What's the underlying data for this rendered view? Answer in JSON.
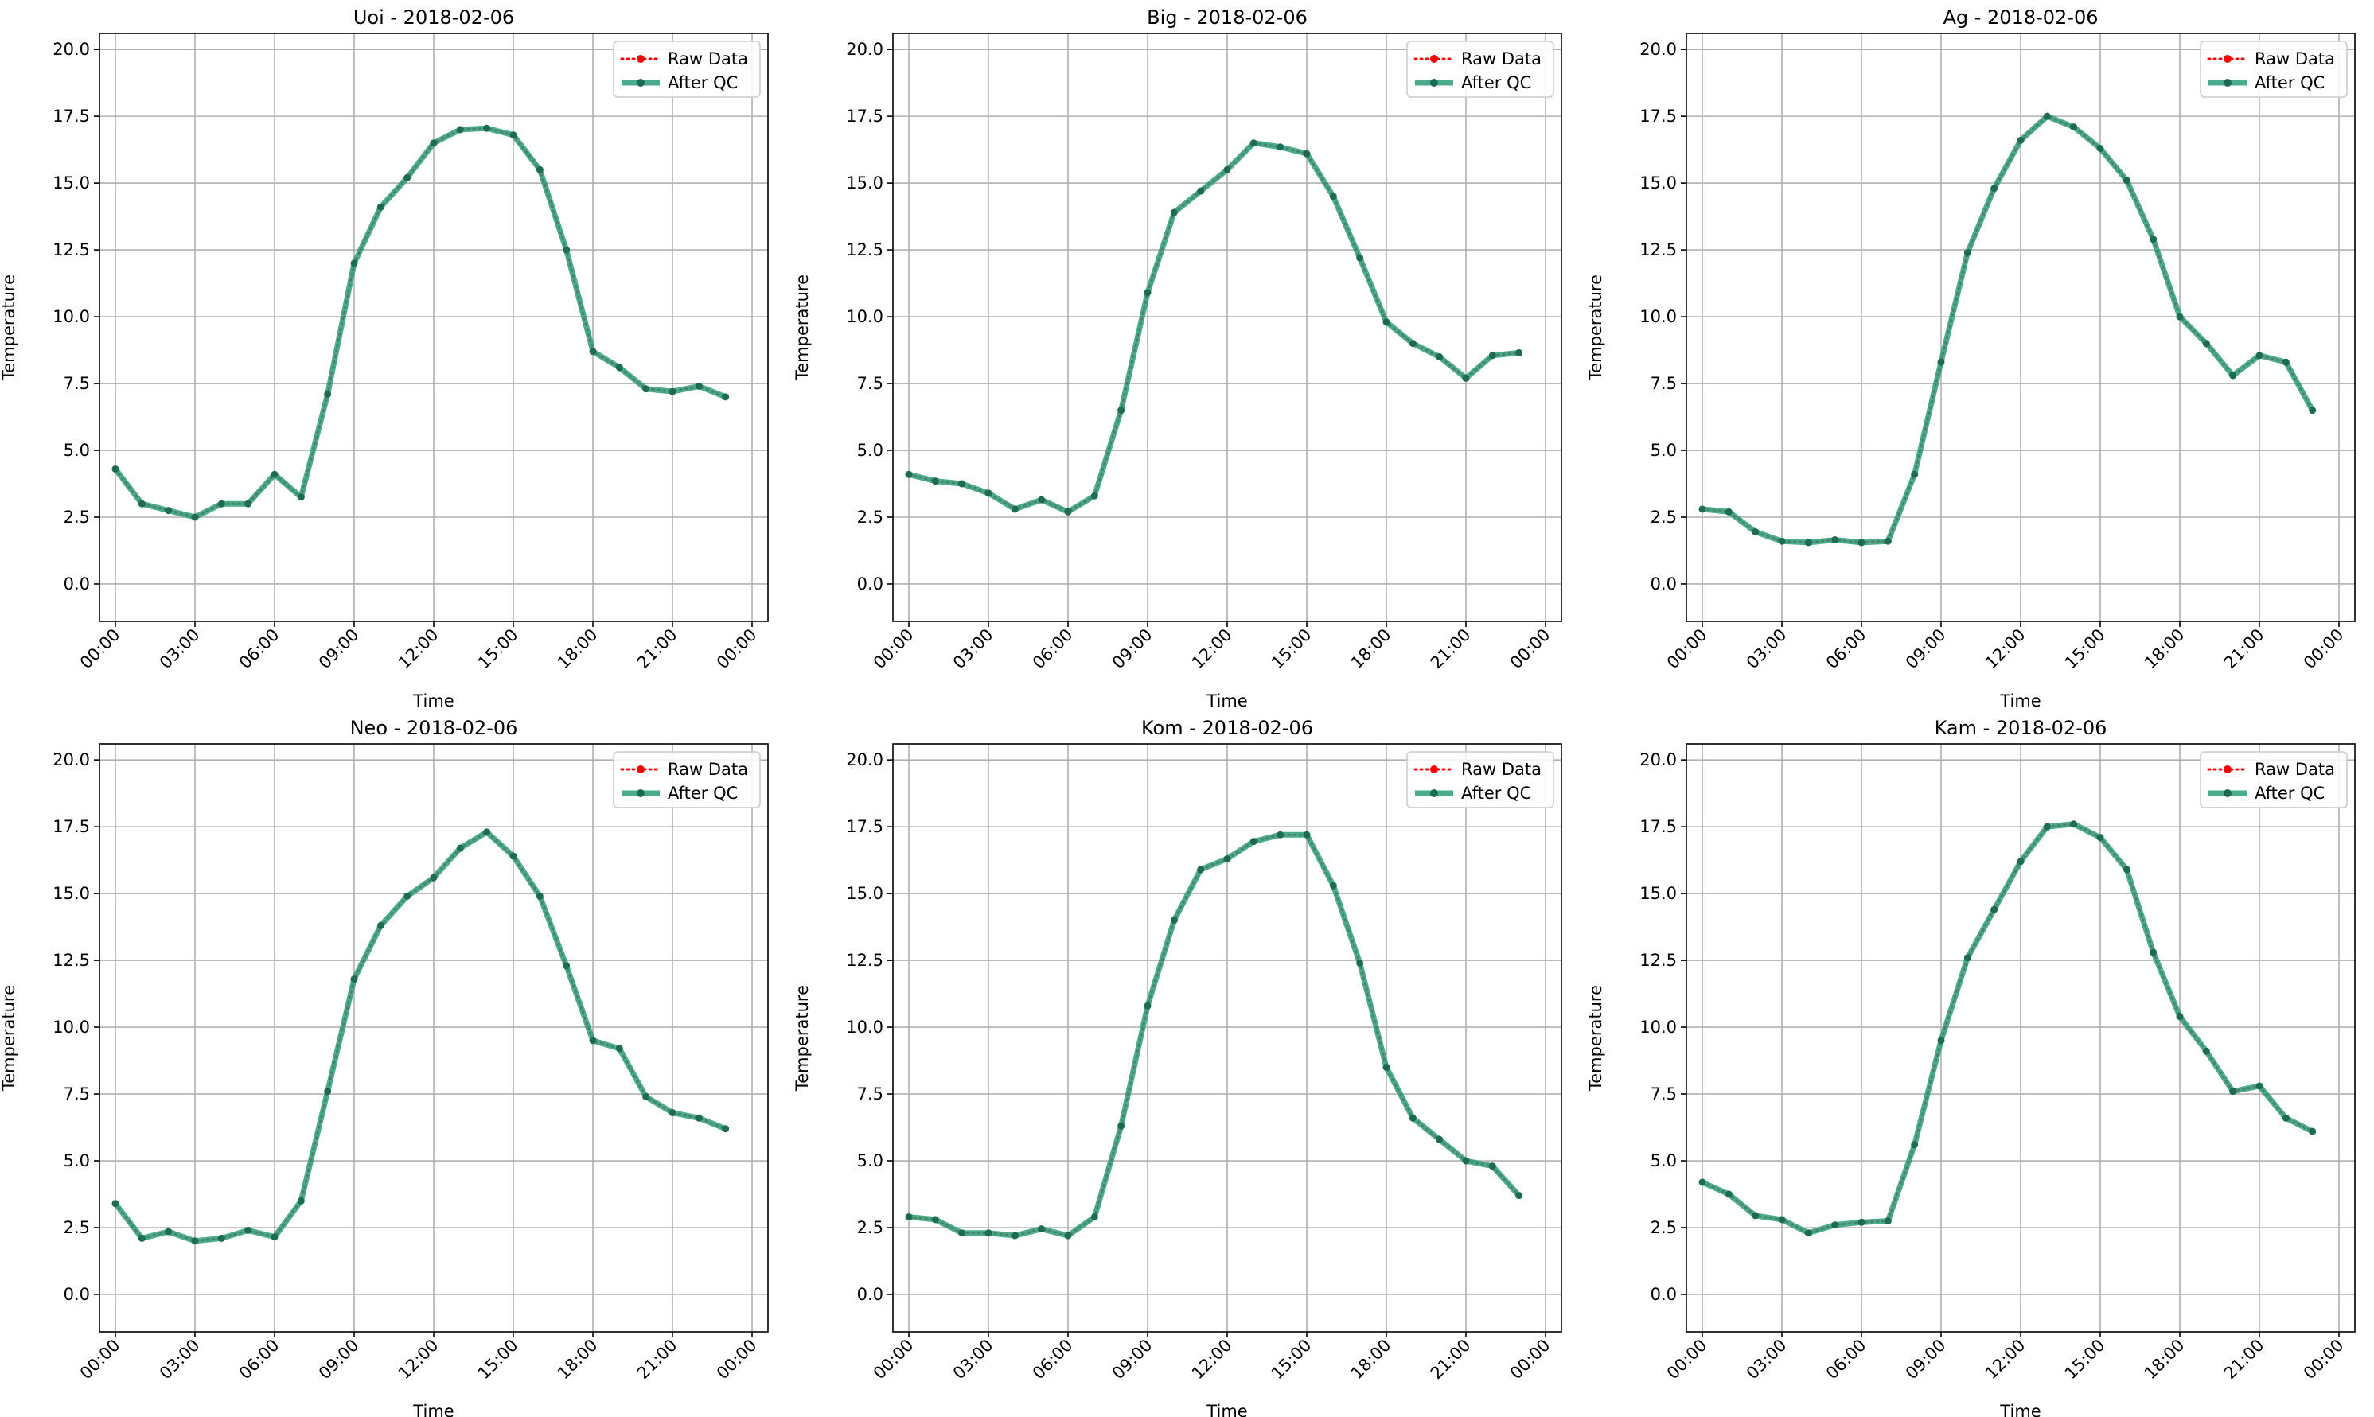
{
  "colors": {
    "raw": "#ff0000",
    "qc": "#2a9d78",
    "marker_dark": "#1e6b55",
    "grid": "#b0b0b0",
    "axis": "#000000"
  },
  "legend": {
    "raw_label": "Raw Data",
    "qc_label": "After QC"
  },
  "chart_data": [
    {
      "type": "line",
      "title": "Uoi - 2018-02-06",
      "xlabel": "Time",
      "ylabel": "Temperature",
      "xlim": [
        -0.6,
        24.6
      ],
      "ylim": [
        -1.4,
        20.6
      ],
      "legend_position": "top-right",
      "grid": true,
      "x_ticks": [
        0,
        3,
        6,
        9,
        12,
        15,
        18,
        21,
        24
      ],
      "x_tick_labels": [
        "00:00",
        "03:00",
        "06:00",
        "09:00",
        "12:00",
        "15:00",
        "18:00",
        "21:00",
        "00:00"
      ],
      "y_ticks": [
        0,
        2.5,
        5,
        7.5,
        10,
        12.5,
        15,
        17.5,
        20
      ],
      "y_tick_labels": [
        "0.0",
        "2.5",
        "5.0",
        "7.5",
        "10.0",
        "12.5",
        "15.0",
        "17.5",
        "20.0"
      ],
      "x": [
        0,
        1,
        2,
        3,
        4,
        5,
        6,
        7,
        8,
        9,
        10,
        11,
        12,
        13,
        14,
        15,
        16,
        17,
        18,
        19,
        20,
        21,
        22,
        23
      ],
      "series": [
        {
          "name": "Raw Data",
          "values": [
            4.3,
            3.0,
            2.75,
            2.5,
            3.0,
            3.0,
            4.1,
            3.25,
            7.1,
            12.0,
            14.1,
            15.2,
            16.5,
            17.0,
            17.05,
            16.8,
            15.5,
            12.5,
            8.7,
            8.1,
            7.3,
            7.2,
            7.4,
            7.0
          ]
        },
        {
          "name": "After QC",
          "values": [
            4.3,
            3.0,
            2.75,
            2.5,
            3.0,
            3.0,
            4.1,
            3.25,
            7.1,
            12.0,
            14.1,
            15.2,
            16.5,
            17.0,
            17.05,
            16.8,
            15.5,
            12.5,
            8.7,
            8.1,
            7.3,
            7.2,
            7.4,
            7.0
          ]
        }
      ]
    },
    {
      "type": "line",
      "title": "Big - 2018-02-06",
      "xlabel": "Time",
      "ylabel": "Temperature",
      "xlim": [
        -0.6,
        24.6
      ],
      "ylim": [
        -1.4,
        20.6
      ],
      "legend_position": "top-right",
      "grid": true,
      "x_ticks": [
        0,
        3,
        6,
        9,
        12,
        15,
        18,
        21,
        24
      ],
      "x_tick_labels": [
        "00:00",
        "03:00",
        "06:00",
        "09:00",
        "12:00",
        "15:00",
        "18:00",
        "21:00",
        "00:00"
      ],
      "y_ticks": [
        0,
        2.5,
        5,
        7.5,
        10,
        12.5,
        15,
        17.5,
        20
      ],
      "y_tick_labels": [
        "0.0",
        "2.5",
        "5.0",
        "7.5",
        "10.0",
        "12.5",
        "15.0",
        "17.5",
        "20.0"
      ],
      "x": [
        0,
        1,
        2,
        3,
        4,
        5,
        6,
        7,
        8,
        9,
        10,
        11,
        12,
        13,
        14,
        15,
        16,
        17,
        18,
        19,
        20,
        21,
        22,
        23
      ],
      "series": [
        {
          "name": "Raw Data",
          "values": [
            4.1,
            3.85,
            3.75,
            3.4,
            2.8,
            3.15,
            2.7,
            3.3,
            6.5,
            10.9,
            13.9,
            14.7,
            15.5,
            16.5,
            16.35,
            16.1,
            14.5,
            12.2,
            9.8,
            9.0,
            8.5,
            7.7,
            8.55,
            8.65
          ]
        },
        {
          "name": "After QC",
          "values": [
            4.1,
            3.85,
            3.75,
            3.4,
            2.8,
            3.15,
            2.7,
            3.3,
            6.5,
            10.9,
            13.9,
            14.7,
            15.5,
            16.5,
            16.35,
            16.1,
            14.5,
            12.2,
            9.8,
            9.0,
            8.5,
            7.7,
            8.55,
            8.65
          ]
        }
      ]
    },
    {
      "type": "line",
      "title": "Ag - 2018-02-06",
      "xlabel": "Time",
      "ylabel": "Temperature",
      "xlim": [
        -0.6,
        24.6
      ],
      "ylim": [
        -1.4,
        20.6
      ],
      "legend_position": "top-right",
      "grid": true,
      "x_ticks": [
        0,
        3,
        6,
        9,
        12,
        15,
        18,
        21,
        24
      ],
      "x_tick_labels": [
        "00:00",
        "03:00",
        "06:00",
        "09:00",
        "12:00",
        "15:00",
        "18:00",
        "21:00",
        "00:00"
      ],
      "y_ticks": [
        0,
        2.5,
        5,
        7.5,
        10,
        12.5,
        15,
        17.5,
        20
      ],
      "y_tick_labels": [
        "0.0",
        "2.5",
        "5.0",
        "7.5",
        "10.0",
        "12.5",
        "15.0",
        "17.5",
        "20.0"
      ],
      "x": [
        0,
        1,
        2,
        3,
        4,
        5,
        6,
        7,
        8,
        9,
        10,
        11,
        12,
        13,
        14,
        15,
        16,
        17,
        18,
        19,
        20,
        21,
        22,
        23
      ],
      "series": [
        {
          "name": "Raw Data",
          "values": [
            2.8,
            2.7,
            1.95,
            1.6,
            1.55,
            1.65,
            1.55,
            1.6,
            4.1,
            8.3,
            12.4,
            14.8,
            16.6,
            17.5,
            17.1,
            16.3,
            15.1,
            12.9,
            10.0,
            9.0,
            7.8,
            8.55,
            8.3,
            6.5
          ]
        },
        {
          "name": "After QC",
          "values": [
            2.8,
            2.7,
            1.95,
            1.6,
            1.55,
            1.65,
            1.55,
            1.6,
            4.1,
            8.3,
            12.4,
            14.8,
            16.6,
            17.5,
            17.1,
            16.3,
            15.1,
            12.9,
            10.0,
            9.0,
            7.8,
            8.55,
            8.3,
            6.5
          ]
        }
      ]
    },
    {
      "type": "line",
      "title": "Neo - 2018-02-06",
      "xlabel": "Time",
      "ylabel": "Temperature",
      "xlim": [
        -0.6,
        24.6
      ],
      "ylim": [
        -1.4,
        20.6
      ],
      "legend_position": "top-right",
      "grid": true,
      "x_ticks": [
        0,
        3,
        6,
        9,
        12,
        15,
        18,
        21,
        24
      ],
      "x_tick_labels": [
        "00:00",
        "03:00",
        "06:00",
        "09:00",
        "12:00",
        "15:00",
        "18:00",
        "21:00",
        "00:00"
      ],
      "y_ticks": [
        0,
        2.5,
        5,
        7.5,
        10,
        12.5,
        15,
        17.5,
        20
      ],
      "y_tick_labels": [
        "0.0",
        "2.5",
        "5.0",
        "7.5",
        "10.0",
        "12.5",
        "15.0",
        "17.5",
        "20.0"
      ],
      "x": [
        0,
        1,
        2,
        3,
        4,
        5,
        6,
        7,
        8,
        9,
        10,
        11,
        12,
        13,
        14,
        15,
        16,
        17,
        18,
        19,
        20,
        21,
        22,
        23
      ],
      "series": [
        {
          "name": "Raw Data",
          "values": [
            3.4,
            2.1,
            2.35,
            2.0,
            2.1,
            2.4,
            2.15,
            3.5,
            7.6,
            11.8,
            13.8,
            14.9,
            15.6,
            16.7,
            17.3,
            16.4,
            14.9,
            12.3,
            9.5,
            9.2,
            7.4,
            6.8,
            6.6,
            6.2
          ]
        },
        {
          "name": "After QC",
          "values": [
            3.4,
            2.1,
            2.35,
            2.0,
            2.1,
            2.4,
            2.15,
            3.5,
            7.6,
            11.8,
            13.8,
            14.9,
            15.6,
            16.7,
            17.3,
            16.4,
            14.9,
            12.3,
            9.5,
            9.2,
            7.4,
            6.8,
            6.6,
            6.2
          ]
        }
      ]
    },
    {
      "type": "line",
      "title": "Kom - 2018-02-06",
      "xlabel": "Time",
      "ylabel": "Temperature",
      "xlim": [
        -0.6,
        24.6
      ],
      "ylim": [
        -1.4,
        20.6
      ],
      "legend_position": "top-right",
      "grid": true,
      "x_ticks": [
        0,
        3,
        6,
        9,
        12,
        15,
        18,
        21,
        24
      ],
      "x_tick_labels": [
        "00:00",
        "03:00",
        "06:00",
        "09:00",
        "12:00",
        "15:00",
        "18:00",
        "21:00",
        "00:00"
      ],
      "y_ticks": [
        0,
        2.5,
        5,
        7.5,
        10,
        12.5,
        15,
        17.5,
        20
      ],
      "y_tick_labels": [
        "0.0",
        "2.5",
        "5.0",
        "7.5",
        "10.0",
        "12.5",
        "15.0",
        "17.5",
        "20.0"
      ],
      "x": [
        0,
        1,
        2,
        3,
        4,
        5,
        6,
        7,
        8,
        9,
        10,
        11,
        12,
        13,
        14,
        15,
        16,
        17,
        18,
        19,
        20,
        21,
        22,
        23
      ],
      "series": [
        {
          "name": "Raw Data",
          "values": [
            2.9,
            2.8,
            2.3,
            2.3,
            2.2,
            2.45,
            2.2,
            2.9,
            6.3,
            10.8,
            14.0,
            15.9,
            16.3,
            16.95,
            17.2,
            17.2,
            15.3,
            12.4,
            8.5,
            6.6,
            5.8,
            5.0,
            4.8,
            3.7
          ]
        },
        {
          "name": "After QC",
          "values": [
            2.9,
            2.8,
            2.3,
            2.3,
            2.2,
            2.45,
            2.2,
            2.9,
            6.3,
            10.8,
            14.0,
            15.9,
            16.3,
            16.95,
            17.2,
            17.2,
            15.3,
            12.4,
            8.5,
            6.6,
            5.8,
            5.0,
            4.8,
            3.7
          ]
        }
      ]
    },
    {
      "type": "line",
      "title": "Kam - 2018-02-06",
      "xlabel": "Time",
      "ylabel": "Temperature",
      "xlim": [
        -0.6,
        24.6
      ],
      "ylim": [
        -1.4,
        20.6
      ],
      "legend_position": "top-right",
      "grid": true,
      "x_ticks": [
        0,
        3,
        6,
        9,
        12,
        15,
        18,
        21,
        24
      ],
      "x_tick_labels": [
        "00:00",
        "03:00",
        "06:00",
        "09:00",
        "12:00",
        "15:00",
        "18:00",
        "21:00",
        "00:00"
      ],
      "y_ticks": [
        0,
        2.5,
        5,
        7.5,
        10,
        12.5,
        15,
        17.5,
        20
      ],
      "y_tick_labels": [
        "0.0",
        "2.5",
        "5.0",
        "7.5",
        "10.0",
        "12.5",
        "15.0",
        "17.5",
        "20.0"
      ],
      "x": [
        0,
        1,
        2,
        3,
        4,
        5,
        6,
        7,
        8,
        9,
        10,
        11,
        12,
        13,
        14,
        15,
        16,
        17,
        18,
        19,
        20,
        21,
        22,
        23
      ],
      "series": [
        {
          "name": "Raw Data",
          "values": [
            4.2,
            3.75,
            2.95,
            2.8,
            2.3,
            2.6,
            2.7,
            2.75,
            5.6,
            9.5,
            12.6,
            14.4,
            16.2,
            17.5,
            17.6,
            17.1,
            15.9,
            12.8,
            10.4,
            9.1,
            7.6,
            7.8,
            6.6,
            6.1
          ]
        },
        {
          "name": "After QC",
          "values": [
            4.2,
            3.75,
            2.95,
            2.8,
            2.3,
            2.6,
            2.7,
            2.75,
            5.6,
            9.5,
            12.6,
            14.4,
            16.2,
            17.5,
            17.6,
            17.1,
            15.9,
            12.8,
            10.4,
            9.1,
            7.6,
            7.8,
            6.6,
            6.1
          ]
        }
      ]
    }
  ]
}
